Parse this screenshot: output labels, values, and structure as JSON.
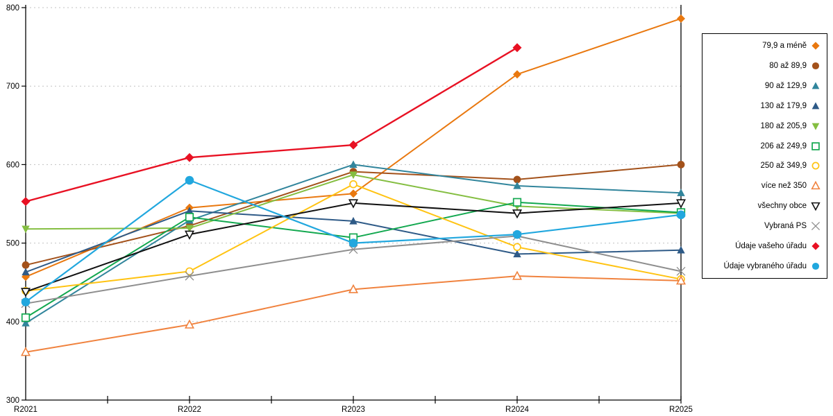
{
  "chart_data": {
    "type": "line",
    "title": "",
    "categories": [
      "R2021",
      "R2022",
      "R2023",
      "R2024",
      "R2025"
    ],
    "y_axis": {
      "min": 300,
      "max": 800,
      "step": 100,
      "ticks": [
        300,
        400,
        500,
        600,
        700,
        800
      ]
    },
    "grid": "dashed-horizontal",
    "grid_color": "#C0C0C0",
    "legend_position": "right",
    "series": [
      {
        "name": "79,9 a méně",
        "color": "#E9780F",
        "marker": "diamond",
        "fill": "solid",
        "values": [
          457,
          545,
          563,
          715,
          786
        ]
      },
      {
        "name": "80 až 89,9",
        "color": "#A3511A",
        "marker": "circle",
        "fill": "solid",
        "values": [
          472,
          522,
          591,
          581,
          600
        ]
      },
      {
        "name": "90 až 129,9",
        "color": "#31859C",
        "marker": "triangle-up",
        "fill": "solid",
        "values": [
          398,
          529,
          600,
          573,
          564
        ]
      },
      {
        "name": "130 až 179,9",
        "color": "#2E5A87",
        "marker": "triangle-up",
        "fill": "solid",
        "values": [
          463,
          541,
          528,
          486,
          491
        ]
      },
      {
        "name": "180 až 205,9",
        "color": "#84BE41",
        "marker": "triangle-down",
        "fill": "solid",
        "values": [
          518,
          519,
          587,
          547,
          538
        ]
      },
      {
        "name": "206 až 249,9",
        "color": "#12A84F",
        "marker": "square",
        "fill": "open",
        "values": [
          405,
          533,
          507,
          552,
          539
        ]
      },
      {
        "name": "250 až 349,9",
        "color": "#FFC312",
        "marker": "circle",
        "fill": "open",
        "values": [
          439,
          464,
          575,
          495,
          454
        ]
      },
      {
        "name": "více než 350",
        "color": "#F0823E",
        "marker": "triangle-up",
        "fill": "open",
        "values": [
          361,
          396,
          441,
          458,
          452
        ]
      },
      {
        "name": "všechny obce",
        "color": "#111111",
        "marker": "triangle-down",
        "fill": "open",
        "values": [
          438,
          511,
          551,
          538,
          551
        ]
      },
      {
        "name": "Vybraná PS",
        "color": "#8E8E8E",
        "marker": "x",
        "fill": "open",
        "values": [
          423,
          458,
          492,
          509,
          464
        ]
      },
      {
        "name": "Údaje vašeho úřadu",
        "color": "#E81123",
        "marker": "diamond",
        "fill": "solid",
        "line_width": 2.4,
        "msize": 6.5,
        "values": [
          553,
          609,
          625,
          749,
          null
        ]
      },
      {
        "name": "Údaje vybraného úřadu",
        "color": "#21A7DE",
        "marker": "circle",
        "fill": "solid",
        "line_width": 2.2,
        "msize": 7,
        "values": [
          425,
          580,
          500,
          511,
          536
        ]
      }
    ]
  }
}
